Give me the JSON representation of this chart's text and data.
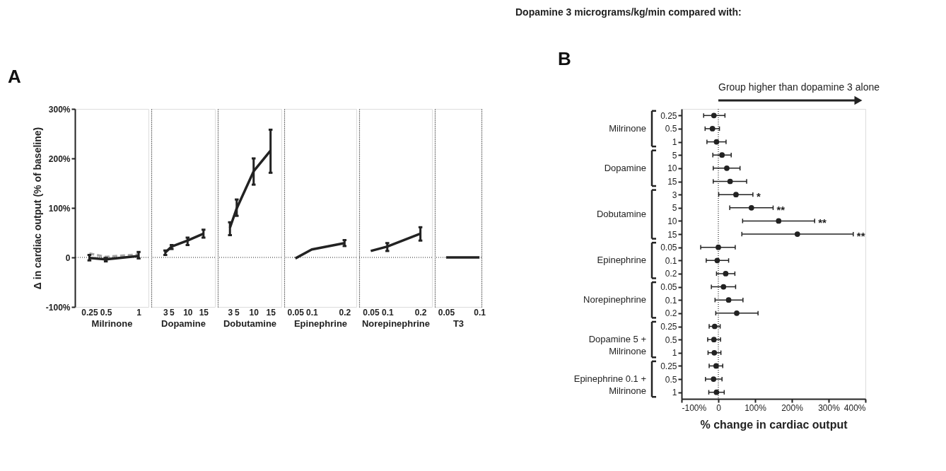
{
  "chart_data": [
    {
      "type": "line",
      "xlabel": "Milrinone",
      "ylabel": "Δ in cardiac output (% of baseline)",
      "x": [
        0.25,
        0.5,
        1
      ],
      "xlim": [
        0.03,
        1.15
      ],
      "xticks": [
        0.25,
        0.5,
        1
      ],
      "ylim": [
        -100,
        300
      ],
      "yticks": [
        {
          "value": -100,
          "label": "-100%"
        },
        0,
        {
          "value": 100,
          "label": "100%"
        },
        {
          "value": 200,
          "label": "200%"
        },
        {
          "value": 300,
          "label": "300%"
        }
      ],
      "marker": "none",
      "series": [
        {
          "color": "#a6a6a6",
          "line_style": "dashed",
          "values": [
            8,
            1,
            6
          ]
        },
        {
          "color": "#222222",
          "values": [
            -1,
            -4,
            3
          ],
          "errors": [
            [
              -6,
              5
            ],
            [
              -8,
              -1
            ],
            [
              -2,
              11
            ]
          ]
        }
      ],
      "ref_lines": [
        {
          "axis": "y",
          "value": 0,
          "line_style": "dotted"
        }
      ],
      "annotations": [
        "A"
      ]
    },
    {
      "type": "line",
      "xlabel": "Dopamine",
      "x": [
        3,
        5,
        10,
        15
      ],
      "xlim": [
        -1.4,
        18.6
      ],
      "xticks": [
        3,
        5,
        10,
        15
      ],
      "ylim": [
        -100,
        300
      ],
      "tick_labels": "x",
      "marker": "none",
      "series": [
        {
          "color": "#222222",
          "values": [
            10,
            22,
            34,
            48
          ],
          "errors": [
            [
              5,
              14
            ],
            [
              17,
              25
            ],
            [
              25,
              40
            ],
            [
              40,
              56
            ]
          ]
        }
      ],
      "ref_lines": [
        {
          "axis": "y",
          "value": 0,
          "line_style": "dotted"
        }
      ]
    },
    {
      "type": "line",
      "xlabel": "Dobutamine",
      "x": [
        3,
        5,
        10,
        15
      ],
      "xlim": [
        -0.6,
        18.2
      ],
      "xticks": [
        3,
        5,
        10,
        15
      ],
      "ylim": [
        -100,
        300
      ],
      "tick_labels": "x",
      "marker": "none",
      "series": [
        {
          "color": "#222222",
          "values": [
            60,
            99,
            174,
            216
          ],
          "errors": [
            [
              45,
              71
            ],
            [
              84,
              117
            ],
            [
              147,
              200
            ],
            [
              171,
              258
            ]
          ]
        }
      ],
      "ref_lines": [
        {
          "axis": "y",
          "value": 0,
          "line_style": "dotted"
        }
      ]
    },
    {
      "type": "line",
      "xlabel": "Epinephrine",
      "x": [
        0.05,
        0.1,
        0.2
      ],
      "xlim": [
        0.016,
        0.236
      ],
      "xticks": [
        0.05,
        0.1,
        0.2
      ],
      "ylim": [
        -100,
        300
      ],
      "tick_labels": "x",
      "marker": "none",
      "series": [
        {
          "color": "#222222",
          "values": [
            -2,
            16,
            29
          ],
          "errors": [
            null,
            null,
            [
              23,
              35
            ]
          ]
        }
      ],
      "ref_lines": [
        {
          "axis": "y",
          "value": 0,
          "line_style": "dotted"
        }
      ]
    },
    {
      "type": "line",
      "xlabel": "Norepinephrine",
      "x": [
        0.05,
        0.1,
        0.2
      ],
      "xlim": [
        0.015,
        0.235
      ],
      "xticks": [
        0.05,
        0.1,
        0.2
      ],
      "ylim": [
        -100,
        300
      ],
      "tick_labels": "x",
      "marker": "none",
      "series": [
        {
          "color": "#222222",
          "values": [
            13,
            22,
            48
          ],
          "errors": [
            null,
            [
              13,
              29
            ],
            [
              34,
              61
            ]
          ]
        }
      ],
      "ref_lines": [
        {
          "axis": "y",
          "value": 0,
          "line_style": "dotted"
        }
      ]
    },
    {
      "type": "line",
      "xlabel": "T3",
      "x": [
        0.05,
        0.1
      ],
      "xlim": [
        0.033,
        0.103
      ],
      "xticks": [
        0.05,
        0.1
      ],
      "ylim": [
        -100,
        300
      ],
      "tick_labels": "x",
      "marker": "none",
      "series": [
        {
          "color": "#222222",
          "values": [
            0,
            0
          ]
        }
      ],
      "ref_lines": [
        {
          "axis": "y",
          "value": 0,
          "line_style": "dotted"
        }
      ]
    },
    {
      "type": "scatter",
      "orientation": "horizontal",
      "title": "Dopamine 3 micrograms/kg/min compared with:",
      "xlabel": "% change in cardiac output",
      "marker": "circle",
      "color": "#222222",
      "categories": [
        "0.25",
        "0.5",
        "1",
        "5",
        "10",
        "15",
        "3",
        "5",
        "10",
        "15",
        "0.05",
        "0.1",
        "0.2",
        "0.05",
        "0.1",
        "0.2",
        "0.25",
        "0.5",
        "1",
        "0.25",
        "0.5",
        "1"
      ],
      "values": [
        -12,
        -16,
        -5,
        10,
        23,
        32,
        48,
        90,
        164,
        215,
        0,
        -3,
        20,
        14,
        28,
        50,
        -10,
        -12,
        -11,
        -6,
        -13,
        -5
      ],
      "errors": [
        [
          -40,
          18
        ],
        [
          -36,
          3
        ],
        [
          -31,
          21
        ],
        [
          -15,
          35
        ],
        [
          -14,
          59
        ],
        [
          -14,
          77
        ],
        [
          1,
          94
        ],
        [
          31,
          149
        ],
        [
          66,
          262
        ],
        [
          64,
          367
        ],
        [
          -48,
          46
        ],
        [
          -33,
          28
        ],
        [
          -5,
          45
        ],
        [
          -19,
          47
        ],
        [
          -9,
          67
        ],
        [
          -7,
          108
        ],
        [
          -25,
          5
        ],
        [
          -29,
          6
        ],
        [
          -28,
          7
        ],
        [
          -25,
          12
        ],
        [
          -35,
          10
        ],
        [
          -26,
          16
        ]
      ],
      "xlim": [
        -100,
        400
      ],
      "xticks": [
        {
          "value": -100,
          "label": "-100%"
        },
        0,
        {
          "value": 100,
          "label": "100%"
        },
        {
          "value": 200,
          "label": "200%"
        },
        {
          "value": 300,
          "label": "300%"
        },
        {
          "value": 400,
          "label": "400%"
        }
      ],
      "ref_lines": [
        {
          "axis": "x",
          "value": 0,
          "line_style": "dotted"
        }
      ],
      "annotations": [
        "B",
        "Group higher than dopamine 3 alone",
        "Milrinone",
        "Dopamine",
        "Dobutamine",
        "Epinephrine",
        "Norepinephrine",
        "Dopamine 5 + Milrinone",
        "Epinephrine 0.1 + Milrinone",
        "*",
        "**",
        "**",
        "**"
      ]
    }
  ]
}
